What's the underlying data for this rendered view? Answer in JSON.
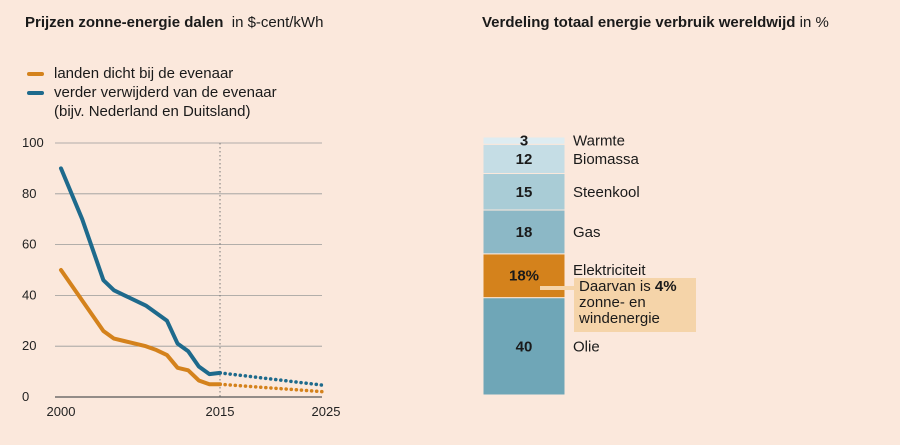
{
  "colors": {
    "background": "#fbe8dc",
    "orange": "#d4821c",
    "blue": "#1e6a8c",
    "grid": "#8a8a8a"
  },
  "left_chart": {
    "title": "Prijzen zonne-energie dalen",
    "unit": "in $-cent/kWh",
    "legend": [
      {
        "label": "landen dicht bij de evenaar",
        "color": "#d4821c"
      },
      {
        "label": "verder verwijderd van de evenaar",
        "color": "#1e6a8c"
      },
      {
        "label": "(bijv. Nederland en Duitsland)",
        "color": ""
      }
    ]
  },
  "right_chart": {
    "title": "Verdeling totaal energie verbruik wereldwijd",
    "unit": "in %",
    "annotation": {
      "prefix": "Daarvan is ",
      "bold": "4%",
      "line2": "zonne- en",
      "line3": "windenergie"
    }
  },
  "chart_data": [
    {
      "type": "line",
      "title": "Prijzen zonne-energie dalen in $-cent/kWh",
      "xlabel": "",
      "ylabel": "$-cent/kWh",
      "xlim": [
        1999,
        2026
      ],
      "ylim": [
        0,
        100
      ],
      "x_ticks": [
        2000,
        2015,
        2025
      ],
      "y_ticks": [
        0,
        20,
        40,
        60,
        80,
        100
      ],
      "grid": true,
      "reference_line": {
        "x": 2015,
        "style": "dotted"
      },
      "series": [
        {
          "name": "landen dicht bij de evenaar",
          "color": "#d4821c",
          "x": [
            2000,
            2002,
            2004,
            2005,
            2006,
            2008,
            2009,
            2010,
            2011,
            2012,
            2013,
            2014,
            2015
          ],
          "values": [
            50,
            38,
            26,
            23,
            22,
            20,
            18.5,
            16.5,
            11.5,
            10.5,
            6.5,
            5,
            5
          ],
          "projection": {
            "x": [
              2015,
              2020,
              2025
            ],
            "values": [
              5,
              3.5,
              2
            ]
          }
        },
        {
          "name": "verder verwijderd van de evenaar (bijv. Nederland en Duitsland)",
          "color": "#1e6a8c",
          "x": [
            2000,
            2002,
            2004,
            2005,
            2006,
            2008,
            2009,
            2010,
            2011,
            2012,
            2013,
            2014,
            2015
          ],
          "values": [
            90,
            70,
            46,
            42,
            40,
            36,
            33,
            30,
            21,
            18,
            12,
            9,
            9.5
          ],
          "projection": {
            "x": [
              2015,
              2020,
              2025
            ],
            "values": [
              9.5,
              7,
              4.5
            ]
          }
        }
      ]
    },
    {
      "type": "bar",
      "stacked": true,
      "title": "Verdeling totaal energie verbruik wereldwijd in %",
      "categories": [
        "Olie",
        "Elektriciteit",
        "Gas",
        "Steenkool",
        "Biomassa",
        "Warmte"
      ],
      "values": [
        40,
        18,
        18,
        15,
        12,
        3
      ],
      "value_labels": [
        "40",
        "18%",
        "18",
        "15",
        "12",
        "3"
      ],
      "colors": [
        "#6fa6b7",
        "#d4821c",
        "#8cb8c6",
        "#a9ccd6",
        "#c5dde5",
        "#deecf1"
      ]
    }
  ]
}
